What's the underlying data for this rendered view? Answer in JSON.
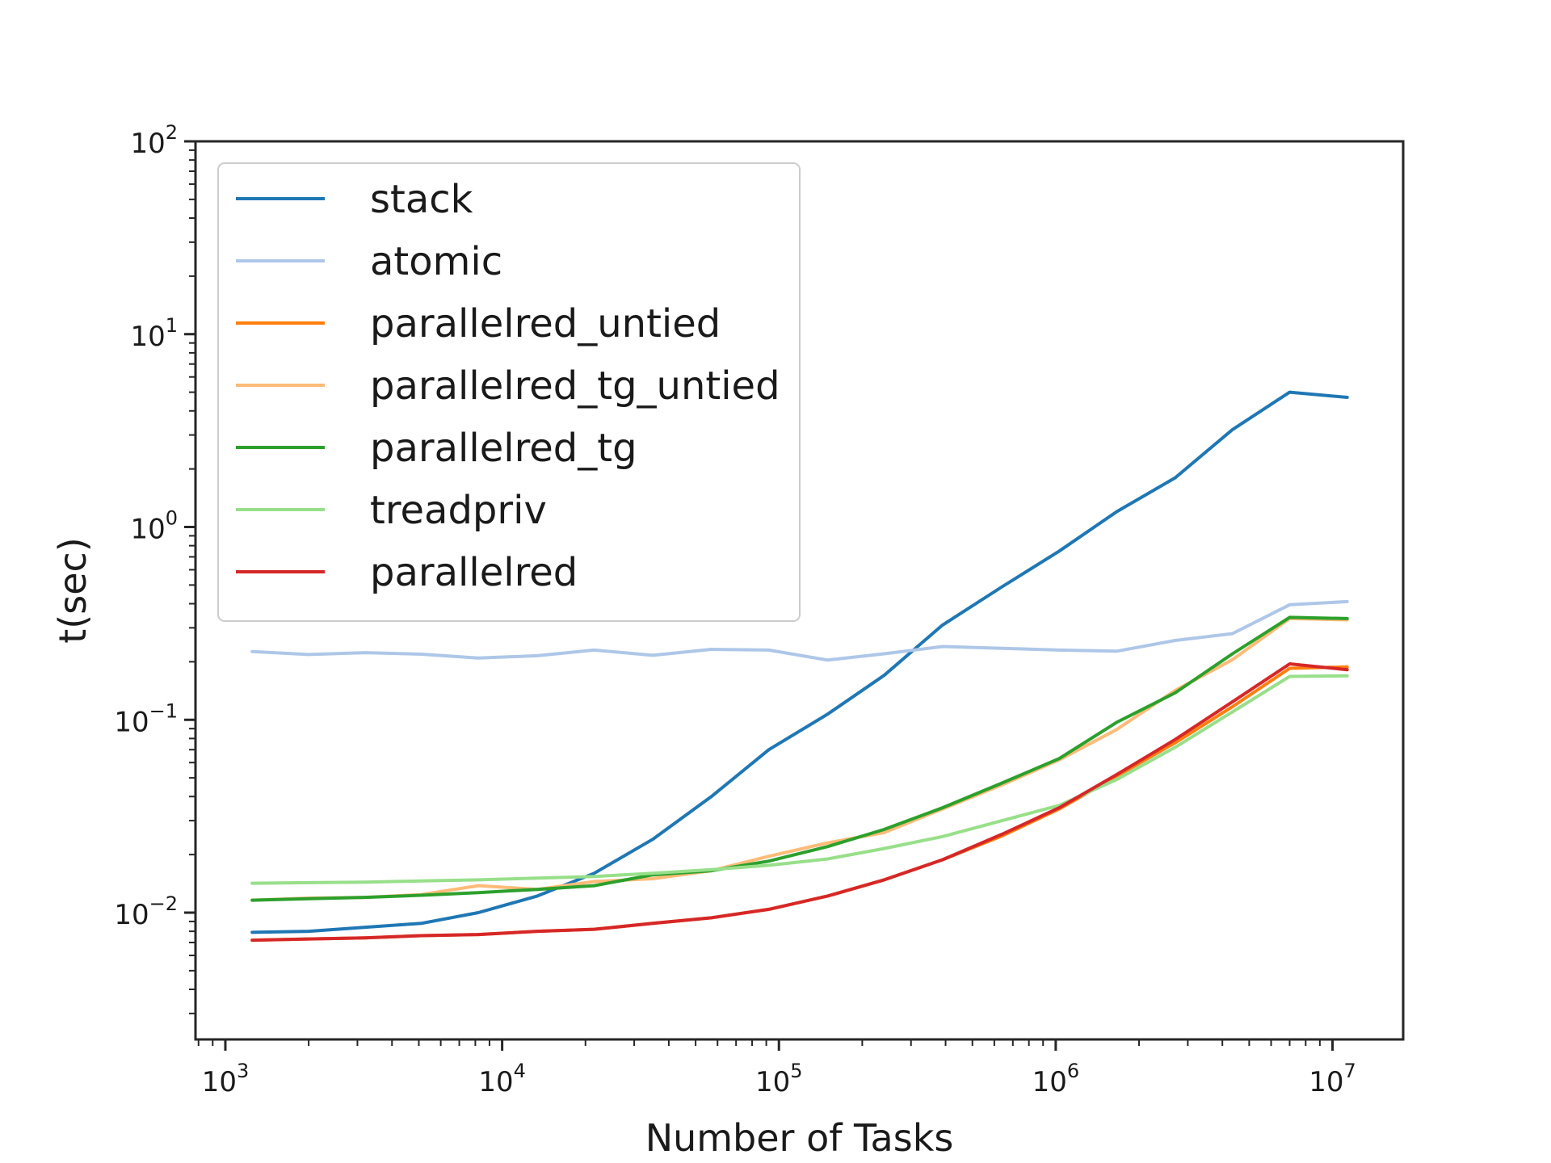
{
  "chart_data": {
    "type": "line",
    "title": "",
    "xlabel": "Number of Tasks",
    "ylabel": "t(sec)",
    "xscale": "log",
    "yscale": "log",
    "xlim": [
      780,
      18000000
    ],
    "ylim": [
      0.0022,
      100
    ],
    "x_ticks": [
      {
        "base": "10",
        "exp": "3",
        "value": 1000
      },
      {
        "base": "10",
        "exp": "4",
        "value": 10000
      },
      {
        "base": "10",
        "exp": "5",
        "value": 100000
      },
      {
        "base": "10",
        "exp": "6",
        "value": 1000000
      },
      {
        "base": "10",
        "exp": "7",
        "value": 10000000
      }
    ],
    "y_ticks": [
      {
        "base": "10",
        "exp": "−2",
        "value": 0.01
      },
      {
        "base": "10",
        "exp": "−1",
        "value": 0.1
      },
      {
        "base": "10",
        "exp": "0",
        "value": 1
      },
      {
        "base": "10",
        "exp": "1",
        "value": 10
      },
      {
        "base": "10",
        "exp": "2",
        "value": 100
      }
    ],
    "grid": false,
    "legend_position": "upper-left",
    "x": [
      1250,
      2000,
      3200,
      5100,
      8200,
      13400,
      21500,
      35000,
      57000,
      92000,
      150000,
      240000,
      390000,
      640000,
      1030000,
      1660000,
      2700000,
      4350000,
      7000000,
      11300000
    ],
    "series": [
      {
        "name": "stack",
        "color": "#1f77b4",
        "values": [
          0.0079,
          0.008,
          0.0084,
          0.0088,
          0.01,
          0.0122,
          0.016,
          0.024,
          0.04,
          0.07,
          0.107,
          0.17,
          0.31,
          0.49,
          0.75,
          1.2,
          1.8,
          3.2,
          5.0,
          4.7
        ]
      },
      {
        "name": "atomic",
        "color": "#aec7e8",
        "values": [
          0.226,
          0.218,
          0.223,
          0.219,
          0.209,
          0.215,
          0.23,
          0.216,
          0.232,
          0.23,
          0.204,
          0.22,
          0.24,
          0.235,
          0.23,
          0.227,
          0.258,
          0.28,
          0.395,
          0.41
        ]
      },
      {
        "name": "parallelred_untied",
        "color": "#ff7f0e",
        "values": [
          0.0072,
          0.0073,
          0.0074,
          0.0076,
          0.0077,
          0.008,
          0.0082,
          0.0088,
          0.0094,
          0.0104,
          0.0122,
          0.0148,
          0.0188,
          0.025,
          0.0345,
          0.051,
          0.076,
          0.117,
          0.185,
          0.188
        ]
      },
      {
        "name": "parallelred_tg_untied",
        "color": "#ffbb78",
        "values": [
          0.0116,
          0.0119,
          0.012,
          0.0124,
          0.0138,
          0.0132,
          0.0145,
          0.015,
          0.0165,
          0.0196,
          0.023,
          0.026,
          0.0345,
          0.046,
          0.062,
          0.089,
          0.142,
          0.205,
          0.335,
          0.33
        ]
      },
      {
        "name": "parallelred_tg",
        "color": "#2ca02c",
        "values": [
          0.0116,
          0.0118,
          0.012,
          0.0123,
          0.0127,
          0.0132,
          0.0138,
          0.0157,
          0.0165,
          0.0185,
          0.022,
          0.027,
          0.035,
          0.047,
          0.063,
          0.097,
          0.138,
          0.22,
          0.34,
          0.335
        ]
      },
      {
        "name": "treadpriv",
        "color": "#98df8a",
        "values": [
          0.0142,
          0.0143,
          0.0144,
          0.0146,
          0.0148,
          0.0151,
          0.0154,
          0.016,
          0.0167,
          0.0176,
          0.019,
          0.0215,
          0.0248,
          0.03,
          0.036,
          0.049,
          0.072,
          0.11,
          0.168,
          0.169
        ]
      },
      {
        "name": "parallelred",
        "color": "#d62728",
        "values": [
          0.0072,
          0.0073,
          0.0074,
          0.0076,
          0.0077,
          0.008,
          0.0082,
          0.0088,
          0.0094,
          0.0104,
          0.0122,
          0.0148,
          0.0188,
          0.0255,
          0.035,
          0.052,
          0.079,
          0.124,
          0.195,
          0.182
        ]
      }
    ]
  }
}
